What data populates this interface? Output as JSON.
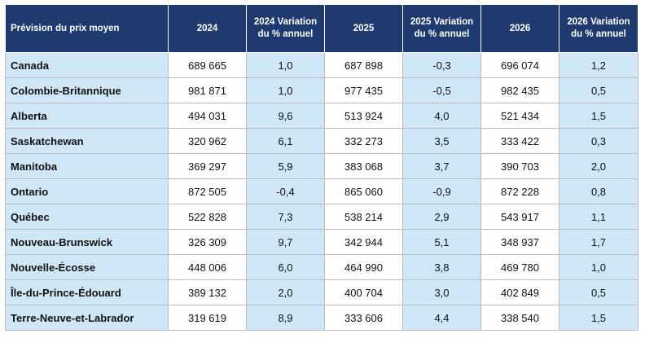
{
  "table": {
    "headers": [
      "Prévision du prix moyen",
      "2024",
      "2024 Variation du % annuel",
      "2025",
      "2025 Variation du % annuel",
      "2026",
      "2026 Variation du % annuel"
    ],
    "rows": [
      [
        "Canada",
        "689 665",
        "1,0",
        "687 898",
        "-0,3",
        "696 074",
        "1,2"
      ],
      [
        "Colombie-Britannique",
        "981 871",
        "1,0",
        "977 435",
        "-0,5",
        "982 435",
        "0,5"
      ],
      [
        "Alberta",
        "494 031",
        "9,6",
        "513 924",
        "4,0",
        "521 434",
        "1,5"
      ],
      [
        "Saskatchewan",
        "320 962",
        "6,1",
        "332 273",
        "3,5",
        "333 422",
        "0,3"
      ],
      [
        "Manitoba",
        "369 297",
        "5,9",
        "383 068",
        "3,7",
        "390 703",
        "2,0"
      ],
      [
        "Ontario",
        "872 505",
        "-0,4",
        "865 060",
        "-0,9",
        "872 228",
        "0,8"
      ],
      [
        "Québec",
        "522 828",
        "7,3",
        "538 214",
        "2,9",
        "543 917",
        "1,1"
      ],
      [
        "Nouveau-Brunswick",
        "326 309",
        "9,7",
        "342 944",
        "5,1",
        "348 937",
        "1,7"
      ],
      [
        "Nouvelle-Écosse",
        "448 006",
        "6,0",
        "464 990",
        "3,8",
        "469 780",
        "1,0"
      ],
      [
        "Île-du-Prince-Édouard",
        "389 132",
        "2,0",
        "400 704",
        "3,0",
        "402 849",
        "0,5"
      ],
      [
        "Terre-Neuve-et-Labrador",
        "319 619",
        "8,9",
        "333 606",
        "4,4",
        "338 540",
        "1,5"
      ]
    ]
  },
  "colors": {
    "header_bg": "#1f3a6e",
    "label_bg": "#cfe7f7",
    "pct_bg": "#cfe7f7"
  }
}
